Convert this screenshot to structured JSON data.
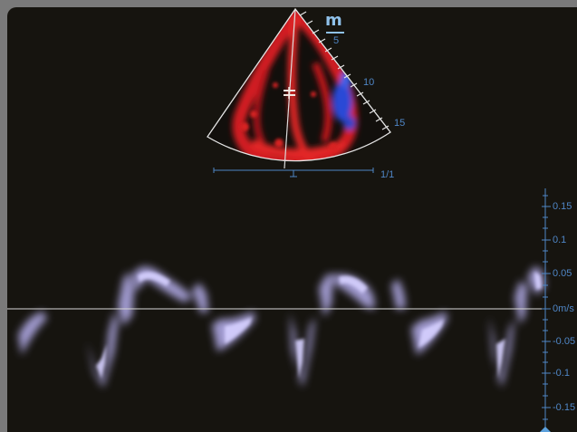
{
  "image": {
    "depth_labels": [
      "5",
      "10",
      "15"
    ],
    "frame_ratio": "1/1",
    "tdi_scale": {
      "ticks": [
        "0.15",
        "0.1",
        "0.05",
        "0m/s",
        "-0.05",
        "-0.1",
        "-0.15"
      ]
    },
    "colors": {
      "background": "#16140f",
      "doppler_red": "#d81e22",
      "doppler_blue": "#2e4fd8",
      "spectrum": "#c9c3ff",
      "scale_text": "#4f86c6",
      "logo": "#8fc1ea"
    }
  }
}
